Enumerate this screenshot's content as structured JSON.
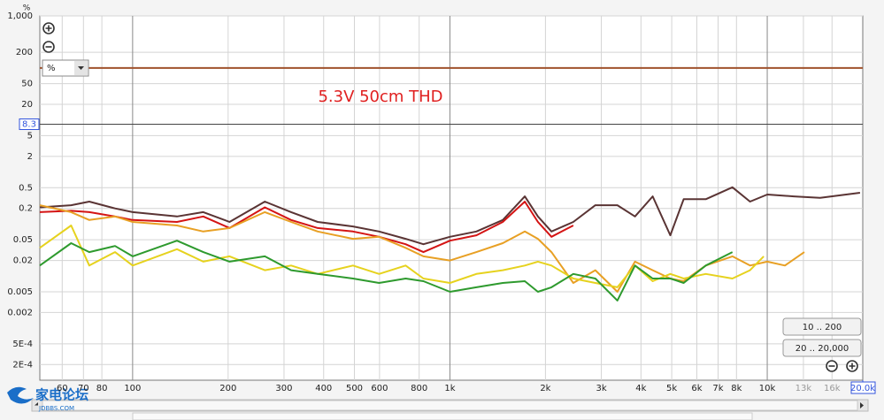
{
  "chart_data": {
    "type": "line",
    "annotation": "5.3V 50cm THD",
    "y_label": "%",
    "xscale": "log",
    "yscale": "log",
    "grid": true,
    "xlim": [
      51,
      20000
    ],
    "ylim": [
      0.0001,
      1000
    ],
    "xticks": [
      60,
      70,
      80,
      100,
      200,
      300,
      400,
      500,
      600,
      800,
      {
        "value": 1000,
        "label": "1k"
      },
      {
        "value": 2000,
        "label": "2k"
      },
      {
        "value": 3000,
        "label": "3k"
      },
      {
        "value": 4000,
        "label": "4k"
      },
      {
        "value": 5000,
        "label": "5k"
      },
      {
        "value": 6000,
        "label": "6k"
      },
      {
        "value": 7000,
        "label": "7k"
      },
      {
        "value": 8000,
        "label": "8k"
      },
      {
        "value": 10000,
        "label": "10k"
      },
      {
        "value": 13000,
        "label": "13k"
      },
      {
        "value": 16000,
        "label": "16k"
      }
    ],
    "yticks": [
      {
        "value": 1000,
        "label": "1,000"
      },
      200,
      50,
      20,
      5,
      2,
      0.5,
      0.2,
      0.05,
      0.02,
      0.005,
      0.002,
      {
        "value": 0.0005,
        "label": "5E-4"
      },
      {
        "value": 0.0002,
        "label": "2E-4"
      }
    ],
    "cursor_y": 8.3,
    "cursor_x": {
      "value": 20000,
      "label": "20.0k"
    },
    "series": [
      {
        "color": "#a0522d",
        "x": [
          51,
          20000
        ],
        "values": [
          100,
          100
        ]
      },
      {
        "color": "#5a3434",
        "x": [
          51,
          64,
          73,
          88,
          100,
          138,
          167,
          202,
          261,
          316,
          383,
          495,
          598,
          725,
          825,
          1000,
          1212,
          1468,
          1722,
          1894,
          2089,
          2448,
          2872,
          3371,
          3831,
          4355,
          4950,
          5451,
          6402,
          7768,
          8826,
          10000,
          12120,
          14680,
          19600
        ],
        "values": [
          0.21,
          0.23,
          0.27,
          0.2,
          0.17,
          0.14,
          0.17,
          0.11,
          0.27,
          0.17,
          0.11,
          0.09,
          0.072,
          0.052,
          0.041,
          0.057,
          0.072,
          0.12,
          0.34,
          0.14,
          0.072,
          0.11,
          0.23,
          0.23,
          0.14,
          0.34,
          0.061,
          0.3,
          0.3,
          0.51,
          0.27,
          0.37,
          0.34,
          0.32,
          0.4
        ]
      },
      {
        "color": "#d41414",
        "x": [
          51,
          64,
          73,
          88,
          100,
          138,
          167,
          202,
          261,
          316,
          383,
          495,
          598,
          725,
          825,
          1000,
          1212,
          1468,
          1722,
          1894,
          2089,
          2448
        ],
        "values": [
          0.17,
          0.18,
          0.17,
          0.14,
          0.12,
          0.11,
          0.14,
          0.084,
          0.21,
          0.12,
          0.084,
          0.072,
          0.057,
          0.041,
          0.029,
          0.048,
          0.061,
          0.11,
          0.27,
          0.11,
          0.057,
          0.094
        ]
      },
      {
        "color": "#e8a024",
        "x": [
          51,
          64,
          73,
          88,
          100,
          138,
          167,
          202,
          261,
          316,
          383,
          495,
          598,
          725,
          825,
          1000,
          1212,
          1468,
          1722,
          1894,
          2089,
          2448,
          2872,
          3371,
          3831,
          4355,
          4950,
          5451,
          6402,
          7768,
          8826,
          10000,
          11370,
          13090
        ],
        "values": [
          0.23,
          0.17,
          0.12,
          0.14,
          0.11,
          0.094,
          0.072,
          0.084,
          0.17,
          0.11,
          0.072,
          0.052,
          0.057,
          0.035,
          0.024,
          0.02,
          0.029,
          0.043,
          0.072,
          0.052,
          0.029,
          0.0074,
          0.013,
          0.005,
          0.019,
          0.013,
          0.009,
          0.008,
          0.016,
          0.024,
          0.016,
          0.019,
          0.016,
          0.029
        ]
      },
      {
        "color": "#e6d21e",
        "x": [
          51,
          64,
          73,
          88,
          100,
          138,
          167,
          202,
          261,
          316,
          383,
          495,
          598,
          725,
          825,
          1000,
          1212,
          1468,
          1722,
          1894,
          2089,
          2448,
          2872,
          3371,
          3831,
          4355,
          4950,
          5451,
          6402,
          7768,
          8826,
          9750
        ],
        "values": [
          0.035,
          0.094,
          0.016,
          0.029,
          0.016,
          0.033,
          0.019,
          0.024,
          0.013,
          0.016,
          0.011,
          0.016,
          0.011,
          0.016,
          0.009,
          0.0074,
          0.011,
          0.013,
          0.016,
          0.019,
          0.016,
          0.009,
          0.0074,
          0.0061,
          0.016,
          0.008,
          0.011,
          0.009,
          0.011,
          0.009,
          0.013,
          0.024
        ]
      },
      {
        "color": "#2e9a2e",
        "x": [
          51,
          64,
          73,
          88,
          100,
          138,
          167,
          202,
          261,
          316,
          383,
          495,
          598,
          725,
          825,
          1000,
          1212,
          1468,
          1722,
          1894,
          2089,
          2448,
          2872,
          3371,
          3831,
          4355,
          4950,
          5451,
          6402,
          7768
        ],
        "values": [
          0.016,
          0.043,
          0.029,
          0.038,
          0.024,
          0.048,
          0.029,
          0.019,
          0.024,
          0.013,
          0.011,
          0.009,
          0.0074,
          0.009,
          0.008,
          0.005,
          0.0061,
          0.0074,
          0.008,
          0.005,
          0.0061,
          0.011,
          0.009,
          0.0034,
          0.016,
          0.009,
          0.009,
          0.0074,
          0.016,
          0.029
        ]
      }
    ]
  },
  "ui": {
    "unit_select": "%",
    "buttons": [
      "10 .. 200",
      "20 .. 20,000"
    ],
    "watermark": "家电论坛",
    "watermark_sub": "JDBBS.COM"
  }
}
